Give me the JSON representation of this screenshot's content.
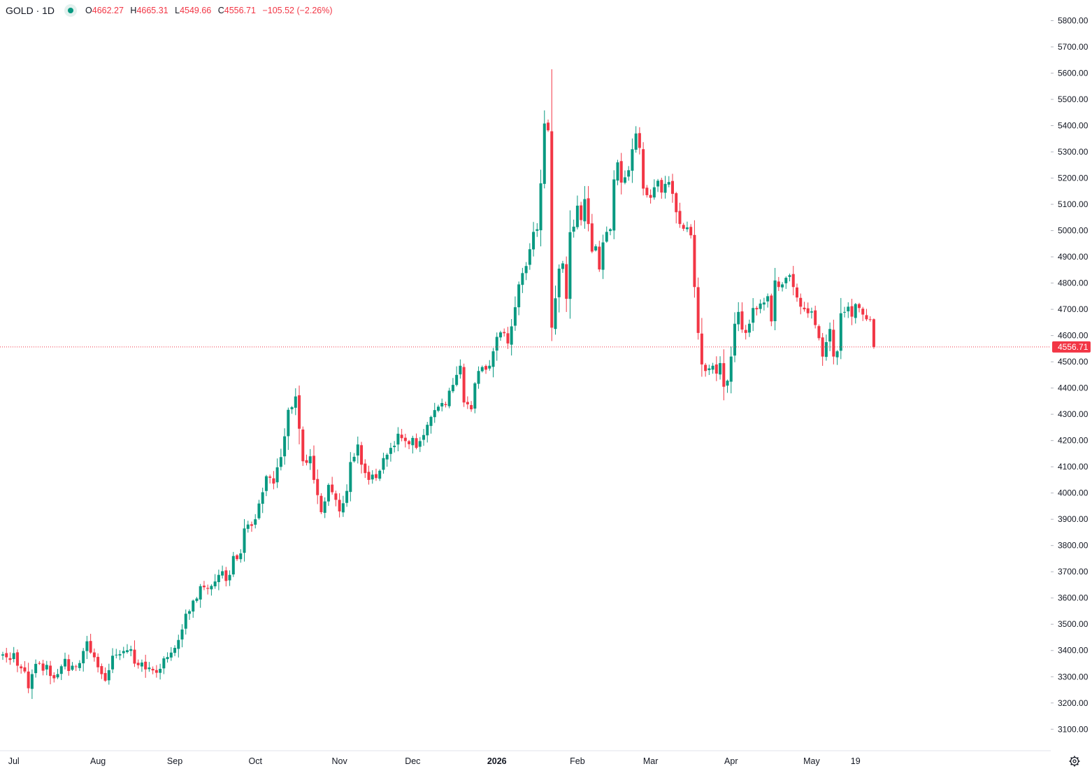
{
  "legend": {
    "symbol": "GOLD · 1D",
    "open_label": "O",
    "open": "4662.27",
    "high_label": "H",
    "high": "4665.31",
    "low_label": "L",
    "low": "4549.66",
    "close_label": "C",
    "close": "4556.71",
    "change": "−105.52 (−2.26%)"
  },
  "colors": {
    "up": "#089981",
    "down": "#f23645",
    "text": "#131722",
    "axis_text": "#131722",
    "border": "#e0e3eb"
  },
  "icons": {
    "status_dot": "status-dot-icon",
    "settings": "gear-icon"
  },
  "chart_data": {
    "type": "candlestick",
    "symbol": "GOLD",
    "interval": "1D",
    "ylim": [
      3000,
      5850
    ],
    "y_ticks": [
      "3100.00",
      "3200.00",
      "3300.00",
      "3400.00",
      "3500.00",
      "3600.00",
      "3700.00",
      "3800.00",
      "3900.00",
      "4000.00",
      "4100.00",
      "4200.00",
      "4300.00",
      "4400.00",
      "4500.00",
      "4600.00",
      "4700.00",
      "4800.00",
      "4900.00",
      "5000.00",
      "5100.00",
      "5200.00",
      "5300.00",
      "5400.00",
      "5500.00",
      "5600.00",
      "5700.00",
      "5800.00"
    ],
    "x_labels": [
      {
        "label": "Jul",
        "date": "2025-07-01",
        "bold": false
      },
      {
        "label": "Aug",
        "date": "2025-08-01",
        "bold": false
      },
      {
        "label": "Sep",
        "date": "2025-09-01",
        "bold": false
      },
      {
        "label": "Oct",
        "date": "2025-10-01",
        "bold": false
      },
      {
        "label": "Nov",
        "date": "2025-11-01",
        "bold": false
      },
      {
        "label": "Dec",
        "date": "2025-12-01",
        "bold": false
      },
      {
        "label": "2026",
        "date": "2026-01-01",
        "bold": true
      },
      {
        "label": "Feb",
        "date": "2026-02-01",
        "bold": false
      },
      {
        "label": "Mar",
        "date": "2026-03-01",
        "bold": false
      },
      {
        "label": "Apr",
        "date": "2026-04-01",
        "bold": false
      },
      {
        "label": "May",
        "date": "2026-05-01",
        "bold": false
      },
      {
        "label": "19",
        "date": "2026-05-19",
        "bold": false
      }
    ],
    "last_price": 4556.71,
    "last_price_label": "4556.71",
    "closes": [
      3385,
      3374,
      3364,
      3390,
      3342,
      3332,
      3320,
      3256,
      3310,
      3349,
      3352,
      3323,
      3345,
      3303,
      3294,
      3310,
      3340,
      3368,
      3322,
      3342,
      3338,
      3352,
      3398,
      3435,
      3392,
      3374,
      3336,
      3310,
      3285,
      3325,
      3380,
      3384,
      3386,
      3398,
      3401,
      3405,
      3350,
      3344,
      3354,
      3328,
      3335,
      3324,
      3315,
      3330,
      3370,
      3375,
      3392,
      3410,
      3440,
      3480,
      3540,
      3550,
      3590,
      3598,
      3645,
      3641,
      3635,
      3646,
      3663,
      3688,
      3702,
      3665,
      3688,
      3760,
      3748,
      3770,
      3865,
      3880,
      3875,
      3900,
      3960,
      4003,
      4064,
      4058,
      4036,
      4098,
      4137,
      4216,
      4317,
      4327,
      4368,
      4245,
      4121,
      4115,
      4140,
      4050,
      3992,
      3927,
      3968,
      4031,
      4003,
      3974,
      3930,
      3961,
      4008,
      4118,
      4138,
      4185,
      4108,
      4076,
      4050,
      4070,
      4057,
      4085,
      4133,
      4146,
      4172,
      4180,
      4226,
      4209,
      4198,
      4186,
      4210,
      4172,
      4198,
      4221,
      4260,
      4290,
      4316,
      4329,
      4343,
      4335,
      4390,
      4412,
      4450,
      4485,
      4345,
      4338,
      4319,
      4418,
      4465,
      4480,
      4470,
      4485,
      4540,
      4595,
      4612,
      4609,
      4570,
      4635,
      4708,
      4795,
      4838,
      4865,
      4929,
      4995,
      5005,
      5180,
      5408,
      5382,
      4630,
      4742,
      4855,
      4875,
      4740,
      4994,
      5015,
      5095,
      5040,
      5120,
      5025,
      4920,
      4940,
      4852,
      4955,
      4995,
      5005,
      5195,
      5260,
      5183,
      5203,
      5230,
      5310,
      5370,
      5315,
      5160,
      5135,
      5125,
      5165,
      5190,
      5145,
      5178,
      5185,
      5140,
      5070,
      5025,
      5007,
      5012,
      4982,
      4785,
      4610,
      4490,
      4465,
      4475,
      4485,
      4455,
      4495,
      4405,
      4428,
      4520,
      4645,
      4690,
      4623,
      4610,
      4645,
      4705,
      4700,
      4722,
      4726,
      4750,
      4654,
      4810,
      4785,
      4795,
      4820,
      4830,
      4785,
      4745,
      4710,
      4700,
      4685,
      4692,
      4640,
      4590,
      4520,
      4575,
      4625,
      4520,
      4540,
      4685,
      4690,
      4710,
      4672,
      4720,
      4705,
      4680,
      4662,
      4660,
      4556.71
    ]
  }
}
